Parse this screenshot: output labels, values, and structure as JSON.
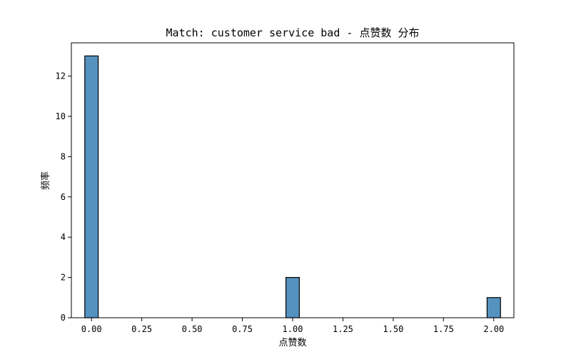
{
  "chart_data": {
    "type": "bar",
    "title": "Match: customer service bad - 点赞数 分布",
    "xlabel": "点赞数",
    "ylabel": "频率",
    "xlim": [
      -0.1,
      2.1
    ],
    "ylim": [
      0,
      13.65
    ],
    "bin_width": 0.0667,
    "bar_color": "#5592c0",
    "edge_color": "#000000",
    "bars": [
      {
        "x": 0.0,
        "value": 13
      },
      {
        "x": 1.0,
        "value": 2
      },
      {
        "x": 2.0,
        "value": 1
      }
    ],
    "x_ticks": [
      {
        "value": 0.0,
        "label": "0.00"
      },
      {
        "value": 0.25,
        "label": "0.25"
      },
      {
        "value": 0.5,
        "label": "0.50"
      },
      {
        "value": 0.75,
        "label": "0.75"
      },
      {
        "value": 1.0,
        "label": "1.00"
      },
      {
        "value": 1.25,
        "label": "1.25"
      },
      {
        "value": 1.5,
        "label": "1.50"
      },
      {
        "value": 1.75,
        "label": "1.75"
      },
      {
        "value": 2.0,
        "label": "2.00"
      }
    ],
    "y_ticks": [
      {
        "value": 0,
        "label": "0"
      },
      {
        "value": 2,
        "label": "2"
      },
      {
        "value": 4,
        "label": "4"
      },
      {
        "value": 6,
        "label": "6"
      },
      {
        "value": 8,
        "label": "8"
      },
      {
        "value": 10,
        "label": "10"
      },
      {
        "value": 12,
        "label": "12"
      }
    ],
    "grid": false,
    "legend": "none"
  }
}
